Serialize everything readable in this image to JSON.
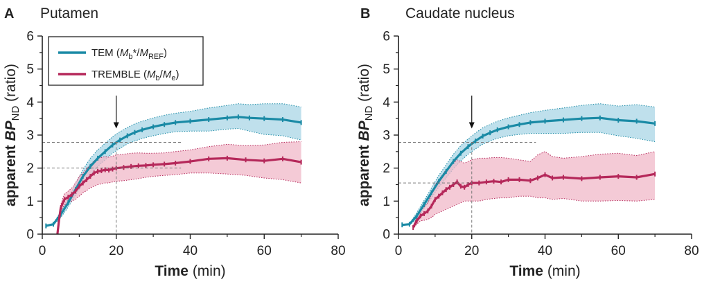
{
  "chart_data": [
    {
      "type": "line",
      "panel_label": "A",
      "title": "Putamen",
      "ylabel": {
        "prefix": "apparent ",
        "bp": "BP",
        "sub": "ND",
        "suffix": " (ratio)"
      },
      "xlabel": {
        "bold": "Time",
        "rest": " (min)"
      },
      "xlim": [
        0,
        80
      ],
      "ylim": [
        0,
        6
      ],
      "xticks": [
        "0",
        "20",
        "40",
        "60",
        "80"
      ],
      "yticks": [
        "0",
        "1",
        "2",
        "3",
        "4",
        "5",
        "6"
      ],
      "legend": {
        "location": "top-left",
        "entries": [
          {
            "label": "TEM",
            "formula": "(Mb*/MREF)"
          },
          {
            "label": "TREMBLE",
            "formula": "(Mb/Me)"
          }
        ]
      },
      "annotations": {
        "arrow_x": 20,
        "ref_x": 20,
        "ref_y_tem": 2.78,
        "ref_y_tremble": 2.0
      },
      "series": [
        {
          "name": "TEM (Mb*/MREF)",
          "color": "#1a8aa5",
          "band_color": "#a9d6e5",
          "x": [
            1,
            3,
            5,
            7,
            9,
            11,
            13,
            15,
            17,
            19,
            21,
            23,
            25,
            27,
            30,
            33,
            36,
            40,
            45,
            50,
            53,
            56,
            60,
            65,
            70
          ],
          "y": [
            0.25,
            0.3,
            0.6,
            0.95,
            1.35,
            1.75,
            2.05,
            2.3,
            2.5,
            2.7,
            2.85,
            2.98,
            3.08,
            3.16,
            3.25,
            3.32,
            3.38,
            3.42,
            3.47,
            3.52,
            3.55,
            3.52,
            3.5,
            3.47,
            3.38
          ],
          "lower": [
            0.25,
            0.28,
            0.5,
            0.82,
            1.18,
            1.55,
            1.8,
            2.05,
            2.25,
            2.45,
            2.6,
            2.73,
            2.82,
            2.9,
            2.98,
            3.05,
            3.1,
            3.12,
            3.12,
            3.18,
            3.2,
            3.12,
            3.02,
            2.98,
            2.85
          ],
          "upper": [
            0.25,
            0.32,
            0.7,
            1.08,
            1.52,
            1.95,
            2.3,
            2.55,
            2.75,
            2.95,
            3.1,
            3.23,
            3.34,
            3.42,
            3.52,
            3.6,
            3.66,
            3.72,
            3.82,
            3.9,
            3.95,
            3.92,
            3.95,
            3.95,
            3.85
          ]
        },
        {
          "name": "TREMBLE (Mb/Me)",
          "color": "#b5285a",
          "band_color": "#f0b8c8",
          "x": [
            4,
            4.6,
            5,
            6,
            7,
            8,
            9,
            10,
            11,
            12,
            13,
            14,
            15,
            16,
            17,
            18,
            19,
            20,
            22,
            24,
            26,
            28,
            30,
            33,
            36,
            40,
            45,
            50,
            55,
            60,
            65,
            70
          ],
          "y": [
            -0.1,
            0.5,
            0.8,
            1.05,
            1.12,
            1.2,
            1.3,
            1.45,
            1.55,
            1.65,
            1.75,
            1.85,
            1.9,
            1.92,
            1.95,
            1.94,
            1.97,
            2.0,
            2.02,
            2.05,
            2.07,
            2.08,
            2.1,
            2.12,
            2.15,
            2.2,
            2.28,
            2.3,
            2.25,
            2.22,
            2.28,
            2.18
          ],
          "lower": [
            -0.1,
            0.45,
            0.7,
            0.88,
            0.95,
            1.0,
            1.05,
            1.15,
            1.25,
            1.32,
            1.4,
            1.45,
            1.5,
            1.52,
            1.55,
            1.55,
            1.58,
            1.6,
            1.62,
            1.65,
            1.68,
            1.72,
            1.75,
            1.78,
            1.8,
            1.85,
            1.85,
            1.82,
            1.78,
            1.7,
            1.65,
            1.55
          ],
          "upper": [
            -0.1,
            0.55,
            0.9,
            1.22,
            1.3,
            1.4,
            1.55,
            1.75,
            1.85,
            1.98,
            2.1,
            2.22,
            2.3,
            2.32,
            2.35,
            2.33,
            2.36,
            2.4,
            2.42,
            2.45,
            2.46,
            2.45,
            2.45,
            2.46,
            2.5,
            2.55,
            2.65,
            2.72,
            2.68,
            2.7,
            2.78,
            2.8
          ]
        }
      ]
    },
    {
      "type": "line",
      "panel_label": "B",
      "title": "Caudate nucleus",
      "ylabel": {
        "prefix": "apparent ",
        "bp": "BP",
        "sub": "ND",
        "suffix": " (ratio)"
      },
      "xlabel": {
        "bold": "Time",
        "rest": " (min)"
      },
      "xlim": [
        0,
        80
      ],
      "ylim": [
        0,
        6
      ],
      "xticks": [
        "0",
        "20",
        "40",
        "60",
        "80"
      ],
      "yticks": [
        "0",
        "1",
        "2",
        "3",
        "4",
        "5",
        "6"
      ],
      "annotations": {
        "arrow_x": 20,
        "ref_x": 20,
        "ref_y_tem": 2.78,
        "ref_y_tremble": 1.55
      },
      "series": [
        {
          "name": "TEM (Mb*/MREF)",
          "color": "#1a8aa5",
          "band_color": "#a9d6e5",
          "x": [
            1,
            3,
            5,
            7,
            9,
            11,
            13,
            15,
            17,
            19,
            21,
            23,
            25,
            27,
            30,
            33,
            36,
            40,
            45,
            50,
            55,
            60,
            65,
            70
          ],
          "y": [
            0.28,
            0.3,
            0.55,
            0.9,
            1.25,
            1.6,
            1.9,
            2.2,
            2.45,
            2.65,
            2.82,
            2.97,
            3.07,
            3.16,
            3.25,
            3.32,
            3.38,
            3.42,
            3.46,
            3.5,
            3.52,
            3.45,
            3.42,
            3.35
          ],
          "lower": [
            0.28,
            0.28,
            0.45,
            0.78,
            1.1,
            1.42,
            1.7,
            1.98,
            2.22,
            2.42,
            2.58,
            2.72,
            2.82,
            2.9,
            2.98,
            3.02,
            3.05,
            3.05,
            3.05,
            3.08,
            3.08,
            2.98,
            2.9,
            2.8
          ],
          "upper": [
            0.28,
            0.32,
            0.65,
            1.02,
            1.4,
            1.78,
            2.1,
            2.42,
            2.68,
            2.88,
            3.06,
            3.22,
            3.32,
            3.42,
            3.52,
            3.6,
            3.68,
            3.75,
            3.82,
            3.9,
            3.95,
            3.88,
            3.92,
            3.85
          ]
        },
        {
          "name": "TREMBLE (Mb/Me)",
          "color": "#b5285a",
          "band_color": "#f0b8c8",
          "x": [
            4,
            5,
            6,
            7,
            8,
            9,
            10,
            11,
            12,
            13,
            14,
            15,
            16,
            17,
            18,
            19,
            20,
            22,
            24,
            26,
            28,
            30,
            33,
            36,
            38,
            40,
            42,
            45,
            50,
            55,
            60,
            65,
            70
          ],
          "y": [
            0.2,
            0.4,
            0.55,
            0.62,
            0.7,
            0.85,
            1.05,
            1.15,
            1.25,
            1.35,
            1.42,
            1.5,
            1.58,
            1.45,
            1.42,
            1.5,
            1.55,
            1.55,
            1.58,
            1.6,
            1.58,
            1.65,
            1.65,
            1.62,
            1.7,
            1.8,
            1.7,
            1.72,
            1.68,
            1.72,
            1.75,
            1.72,
            1.82
          ],
          "lower": [
            0.15,
            0.3,
            0.4,
            0.42,
            0.45,
            0.5,
            0.6,
            0.65,
            0.7,
            0.75,
            0.8,
            0.85,
            0.9,
            0.95,
            1.0,
            1.0,
            1.0,
            1.0,
            1.05,
            1.08,
            1.1,
            1.1,
            1.15,
            1.15,
            1.1,
            1.1,
            1.05,
            1.08,
            1.0,
            1.0,
            1.02,
            1.0,
            1.05
          ],
          "upper": [
            0.25,
            0.5,
            0.7,
            0.82,
            0.95,
            1.2,
            1.5,
            1.65,
            1.8,
            1.95,
            2.05,
            2.15,
            2.25,
            2.2,
            2.15,
            2.2,
            2.25,
            2.3,
            2.3,
            2.32,
            2.32,
            2.3,
            2.25,
            2.2,
            2.4,
            2.5,
            2.35,
            2.3,
            2.35,
            2.42,
            2.45,
            2.38,
            2.5
          ]
        }
      ]
    }
  ]
}
